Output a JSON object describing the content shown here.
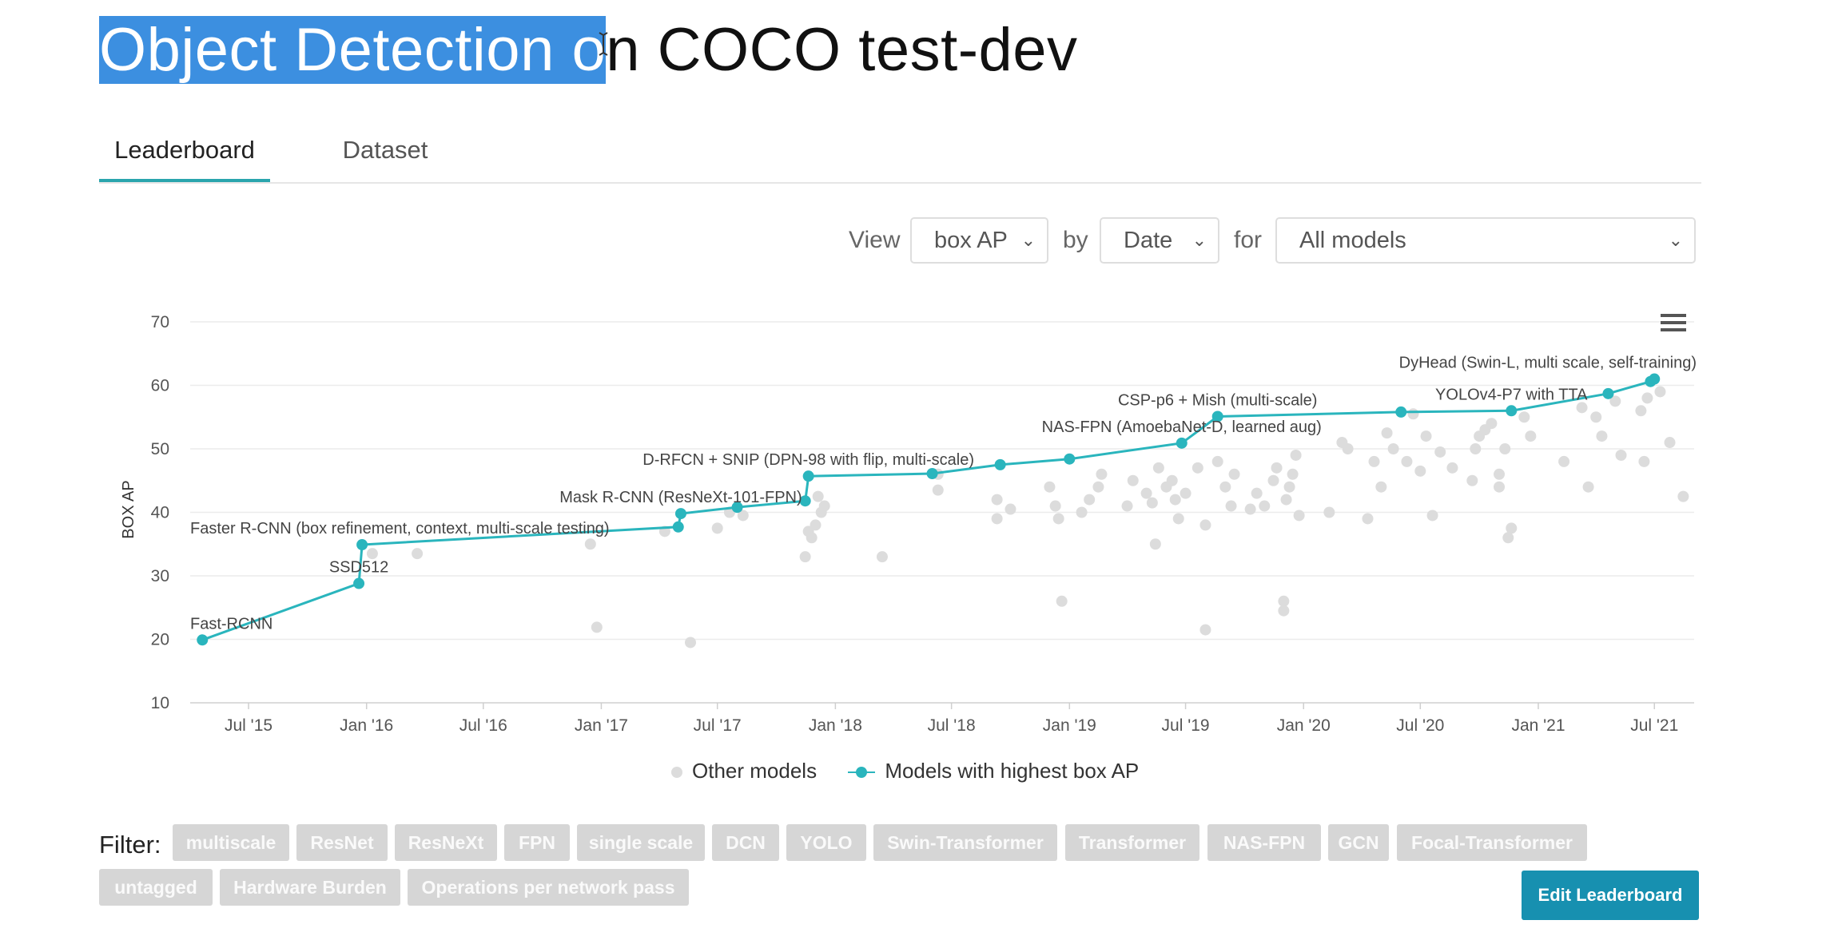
{
  "page": {
    "title_selected": "Object Detection o",
    "title_rest": "n COCO test-dev"
  },
  "tabs": [
    {
      "label": "Leaderboard",
      "active": true
    },
    {
      "label": "Dataset",
      "active": false
    }
  ],
  "controls": {
    "view_label": "View",
    "metric_value": "box AP",
    "by_label": "by",
    "x_value": "Date",
    "for_label": "for",
    "models_value": "All models"
  },
  "chart_data": {
    "type": "scatter",
    "ylabel": "BOX AP",
    "ylim": [
      10,
      70
    ],
    "y_ticks": [
      10,
      20,
      30,
      40,
      50,
      60,
      70
    ],
    "xlim": [
      "2015-04-01",
      "2021-09-01"
    ],
    "x_ticks": [
      {
        "label": "Jul '15",
        "date": "2015-07-01"
      },
      {
        "label": "Jan '16",
        "date": "2016-01-01"
      },
      {
        "label": "Jul '16",
        "date": "2016-07-01"
      },
      {
        "label": "Jan '17",
        "date": "2017-01-01"
      },
      {
        "label": "Jul '17",
        "date": "2017-07-01"
      },
      {
        "label": "Jan '18",
        "date": "2018-01-01"
      },
      {
        "label": "Jul '18",
        "date": "2018-07-01"
      },
      {
        "label": "Jan '19",
        "date": "2019-01-01"
      },
      {
        "label": "Jul '19",
        "date": "2019-07-01"
      },
      {
        "label": "Jan '20",
        "date": "2020-01-01"
      },
      {
        "label": "Jul '20",
        "date": "2020-07-01"
      },
      {
        "label": "Jan '21",
        "date": "2021-01-01"
      },
      {
        "label": "Jul '21",
        "date": "2021-07-01"
      }
    ],
    "gridlines": true,
    "legend_position": "bottom",
    "series": [
      {
        "name": "Other models",
        "color": "#dcdcdc",
        "points": [
          [
            "2016-01-10",
            33.5
          ],
          [
            "2016-03-20",
            33.5
          ],
          [
            "2016-12-15",
            35.0
          ],
          [
            "2016-12-25",
            21.9
          ],
          [
            "2017-04-10",
            37.0
          ],
          [
            "2017-05-20",
            19.5
          ],
          [
            "2017-07-01",
            37.5
          ],
          [
            "2017-07-20",
            40.0
          ],
          [
            "2017-08-10",
            39.5
          ],
          [
            "2017-11-15",
            33.0
          ],
          [
            "2017-11-20",
            37.0
          ],
          [
            "2017-11-25",
            36.0
          ],
          [
            "2017-12-01",
            38.0
          ],
          [
            "2017-12-10",
            40.0
          ],
          [
            "2017-12-05",
            42.5
          ],
          [
            "2017-12-15",
            41.0
          ],
          [
            "2018-03-15",
            33.0
          ],
          [
            "2018-06-10",
            43.5
          ],
          [
            "2018-06-10",
            46.0
          ],
          [
            "2018-09-10",
            42.0
          ],
          [
            "2018-09-10",
            39.0
          ],
          [
            "2018-10-01",
            40.5
          ],
          [
            "2018-12-01",
            44.0
          ],
          [
            "2018-12-10",
            41.0
          ],
          [
            "2018-12-15",
            39.0
          ],
          [
            "2018-12-20",
            26.0
          ],
          [
            "2019-01-20",
            40.0
          ],
          [
            "2019-02-01",
            42.0
          ],
          [
            "2019-02-15",
            44.0
          ],
          [
            "2019-02-20",
            46.0
          ],
          [
            "2019-04-01",
            41.0
          ],
          [
            "2019-04-10",
            45.0
          ],
          [
            "2019-05-01",
            43.0
          ],
          [
            "2019-05-10",
            41.5
          ],
          [
            "2019-05-15",
            35.0
          ],
          [
            "2019-05-20",
            47.0
          ],
          [
            "2019-06-01",
            44.0
          ],
          [
            "2019-06-10",
            45.0
          ],
          [
            "2019-06-15",
            42.0
          ],
          [
            "2019-06-20",
            39.0
          ],
          [
            "2019-07-01",
            43.0
          ],
          [
            "2019-07-20",
            47.0
          ],
          [
            "2019-08-01",
            21.5
          ],
          [
            "2019-08-01",
            38.0
          ],
          [
            "2019-08-20",
            48.0
          ],
          [
            "2019-09-01",
            44.0
          ],
          [
            "2019-09-10",
            41.0
          ],
          [
            "2019-09-15",
            46.0
          ],
          [
            "2019-10-10",
            40.5
          ],
          [
            "2019-10-20",
            43.0
          ],
          [
            "2019-11-01",
            41.0
          ],
          [
            "2019-11-15",
            45.0
          ],
          [
            "2019-11-20",
            47.0
          ],
          [
            "2019-12-01",
            24.5
          ],
          [
            "2019-12-01",
            26.0
          ],
          [
            "2019-12-05",
            42.0
          ],
          [
            "2019-12-10",
            44.0
          ],
          [
            "2019-12-15",
            46.0
          ],
          [
            "2019-12-20",
            49.0
          ],
          [
            "2019-12-25",
            39.5
          ],
          [
            "2020-02-10",
            40.0
          ],
          [
            "2020-03-01",
            51.0
          ],
          [
            "2020-03-10",
            50.0
          ],
          [
            "2020-04-10",
            39.0
          ],
          [
            "2020-04-20",
            48.0
          ],
          [
            "2020-05-01",
            44.0
          ],
          [
            "2020-05-10",
            52.5
          ],
          [
            "2020-05-20",
            50.0
          ],
          [
            "2020-06-10",
            48.0
          ],
          [
            "2020-06-20",
            55.5
          ],
          [
            "2020-07-01",
            46.5
          ],
          [
            "2020-07-10",
            52.0
          ],
          [
            "2020-07-20",
            39.5
          ],
          [
            "2020-08-01",
            49.5
          ],
          [
            "2020-08-20",
            47.0
          ],
          [
            "2020-09-20",
            45.0
          ],
          [
            "2020-09-25",
            50.0
          ],
          [
            "2020-10-01",
            52.0
          ],
          [
            "2020-10-10",
            53.0
          ],
          [
            "2020-10-20",
            54.0
          ],
          [
            "2020-11-01",
            44.0
          ],
          [
            "2020-11-01",
            46.0
          ],
          [
            "2020-11-10",
            50.0
          ],
          [
            "2020-11-15",
            36.0
          ],
          [
            "2020-11-20",
            37.5
          ],
          [
            "2020-12-10",
            55.0
          ],
          [
            "2020-12-20",
            52.0
          ],
          [
            "2021-02-10",
            48.0
          ],
          [
            "2021-03-10",
            56.5
          ],
          [
            "2021-03-20",
            44.0
          ],
          [
            "2021-04-01",
            55.0
          ],
          [
            "2021-04-10",
            52.0
          ],
          [
            "2021-05-01",
            57.5
          ],
          [
            "2021-05-10",
            49.0
          ],
          [
            "2021-06-10",
            56.0
          ],
          [
            "2021-06-15",
            48.0
          ],
          [
            "2021-06-20",
            58.0
          ],
          [
            "2021-07-10",
            59.0
          ],
          [
            "2021-07-25",
            51.0
          ],
          [
            "2021-08-15",
            42.5
          ]
        ]
      },
      {
        "name": "Models with highest box AP",
        "color": "#2ab5bd",
        "points": [
          [
            "2015-04-20",
            19.9
          ],
          [
            "2015-12-20",
            28.8
          ],
          [
            "2015-12-25",
            34.9
          ],
          [
            "2017-05-01",
            37.7
          ],
          [
            "2017-05-05",
            39.8
          ],
          [
            "2017-08-01",
            40.8
          ],
          [
            "2017-11-15",
            41.8
          ],
          [
            "2017-11-20",
            45.7
          ],
          [
            "2018-06-01",
            46.1
          ],
          [
            "2018-09-15",
            47.5
          ],
          [
            "2019-01-01",
            48.4
          ],
          [
            "2019-06-25",
            50.9
          ],
          [
            "2019-08-20",
            55.1
          ],
          [
            "2020-06-01",
            55.8
          ],
          [
            "2020-11-20",
            56.0
          ],
          [
            "2021-04-20",
            58.7
          ],
          [
            "2021-06-25",
            60.6
          ],
          [
            "2021-07-01",
            61.0
          ]
        ],
        "labels": [
          {
            "text": "Fast-RCNN",
            "point": 0
          },
          {
            "text": "SSD512",
            "point": 1
          },
          {
            "text": "Faster R-CNN (box refinement, context, multi-scale testing)",
            "point": 2
          },
          {
            "text": "Mask R-CNN (ResNeXt-101-FPN)",
            "point": 4
          },
          {
            "text": "D-RFCN + SNIP (DPN-98 with flip, multi-scale)",
            "point": 7
          },
          {
            "text": "NAS-FPN (AmoebaNet-D, learned aug)",
            "point": 11
          },
          {
            "text": "CSP-p6 + Mish (multi-scale)",
            "point": 12
          },
          {
            "text": "YOLOv4-P7 with TTA",
            "point": 14
          },
          {
            "text": "DyHead (Swin-L, multi scale, self-training)",
            "point": 17
          }
        ]
      }
    ]
  },
  "legend": {
    "other_label": "Other models",
    "best_label": "Models with highest box AP"
  },
  "filter": {
    "label": "Filter:",
    "tags": [
      "multiscale",
      "ResNet",
      "ResNeXt",
      "FPN",
      "single scale",
      "DCN",
      "YOLO",
      "Swin-Transformer",
      "Transformer",
      "NAS-FPN",
      "GCN",
      "Focal-Transformer",
      "untagged",
      "Hardware Burden",
      "Operations per network pass"
    ]
  },
  "buttons": {
    "edit_leaderboard": "Edit Leaderboard"
  },
  "colors": {
    "accent": "#2ab5bd",
    "button": "#1790b0",
    "selection": "#3c8fe0",
    "chip": "#d6d6d6"
  }
}
